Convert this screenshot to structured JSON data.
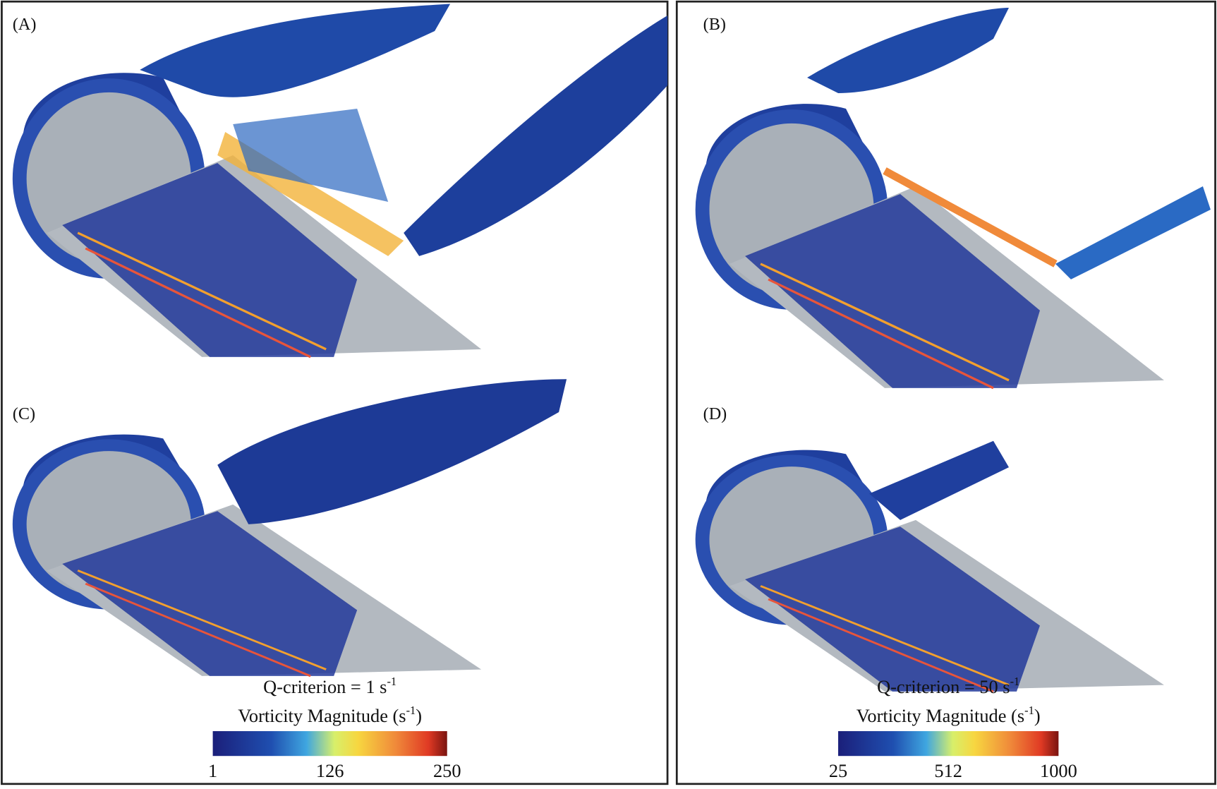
{
  "panels": [
    {
      "label": "(A)"
    },
    {
      "label": "(B)"
    },
    {
      "label": "(C)"
    },
    {
      "label": "(D)"
    }
  ],
  "legends": [
    {
      "q_text": "Q-criterion = 1 s",
      "q_exponent": "-1",
      "title": "Vorticity Magnitude (s",
      "title_exponent": "-1",
      "title_close": ")",
      "ticks": [
        1,
        126,
        250
      ]
    },
    {
      "q_text": "Q-criterion = 50 s",
      "q_exponent": "-1",
      "title": "Vorticity Magnitude (s",
      "title_exponent": "-1",
      "title_close": ")",
      "ticks": [
        25,
        512,
        1000
      ]
    }
  ]
}
